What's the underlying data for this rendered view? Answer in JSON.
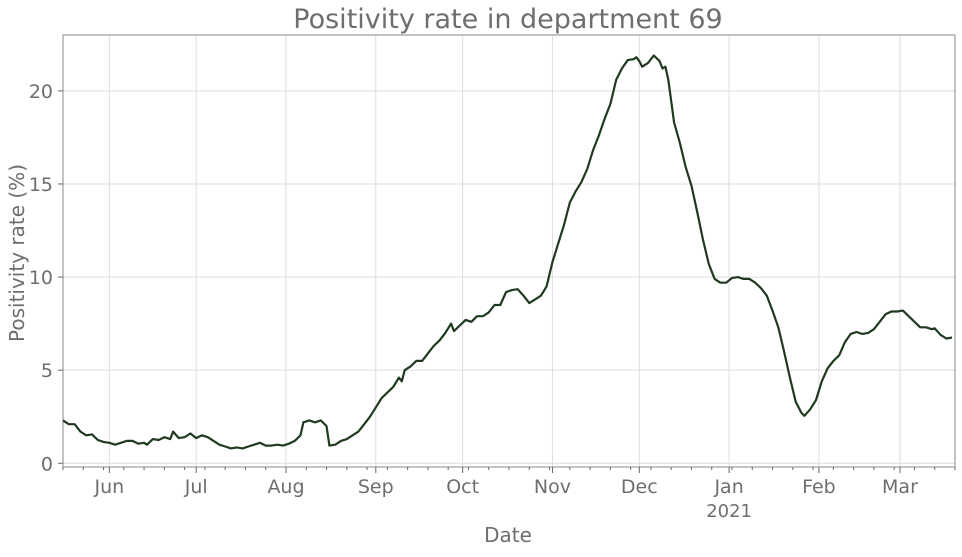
{
  "chart_data": {
    "type": "line",
    "title": "Positivity rate in department 69",
    "xlabel": "Date",
    "ylabel": "Positivity rate (%)",
    "ylim": [
      -0.2,
      23
    ],
    "xlim": [
      "2020-05-16",
      "2021-03-20"
    ],
    "grid": true,
    "y_ticks": [
      0,
      5,
      10,
      15,
      20
    ],
    "x_ticks": [
      {
        "label": "Jun",
        "date": "2020-06-01"
      },
      {
        "label": "Jul",
        "date": "2020-07-01"
      },
      {
        "label": "Aug",
        "date": "2020-08-01"
      },
      {
        "label": "Sep",
        "date": "2020-09-01"
      },
      {
        "label": "Oct",
        "date": "2020-10-01"
      },
      {
        "label": "Nov",
        "date": "2020-11-01"
      },
      {
        "label": "Dec",
        "date": "2020-12-01"
      },
      {
        "label": "Jan",
        "date": "2021-01-01",
        "sublabel": "2021"
      },
      {
        "label": "Feb",
        "date": "2021-02-01"
      },
      {
        "label": "Mar",
        "date": "2021-03-01"
      }
    ],
    "colors": {
      "line": "#1f3a1f",
      "grid": "#dddddd",
      "axis": "#666666",
      "text": "#6e6e6e"
    },
    "series": [
      {
        "values": [
          [
            "2020-05-16",
            2.3
          ],
          [
            "2020-05-18",
            2.1
          ],
          [
            "2020-05-20",
            2.1
          ],
          [
            "2020-05-22",
            1.7
          ],
          [
            "2020-05-24",
            1.5
          ],
          [
            "2020-05-26",
            1.55
          ],
          [
            "2020-05-28",
            1.25
          ],
          [
            "2020-05-30",
            1.15
          ],
          [
            "2020-06-01",
            1.1
          ],
          [
            "2020-06-03",
            1.0
          ],
          [
            "2020-06-05",
            1.1
          ],
          [
            "2020-06-07",
            1.2
          ],
          [
            "2020-06-09",
            1.2
          ],
          [
            "2020-06-11",
            1.05
          ],
          [
            "2020-06-13",
            1.1
          ],
          [
            "2020-06-14",
            1.0
          ],
          [
            "2020-06-16",
            1.3
          ],
          [
            "2020-06-18",
            1.25
          ],
          [
            "2020-06-20",
            1.4
          ],
          [
            "2020-06-22",
            1.3
          ],
          [
            "2020-06-23",
            1.7
          ],
          [
            "2020-06-25",
            1.35
          ],
          [
            "2020-06-27",
            1.4
          ],
          [
            "2020-06-29",
            1.6
          ],
          [
            "2020-07-01",
            1.35
          ],
          [
            "2020-07-03",
            1.5
          ],
          [
            "2020-07-05",
            1.4
          ],
          [
            "2020-07-07",
            1.2
          ],
          [
            "2020-07-09",
            1.0
          ],
          [
            "2020-07-11",
            0.9
          ],
          [
            "2020-07-13",
            0.8
          ],
          [
            "2020-07-15",
            0.85
          ],
          [
            "2020-07-17",
            0.8
          ],
          [
            "2020-07-19",
            0.9
          ],
          [
            "2020-07-21",
            1.0
          ],
          [
            "2020-07-23",
            1.1
          ],
          [
            "2020-07-25",
            0.95
          ],
          [
            "2020-07-27",
            0.95
          ],
          [
            "2020-07-29",
            1.0
          ],
          [
            "2020-07-31",
            0.95
          ],
          [
            "2020-08-02",
            1.05
          ],
          [
            "2020-08-04",
            1.2
          ],
          [
            "2020-08-06",
            1.5
          ],
          [
            "2020-08-07",
            2.2
          ],
          [
            "2020-08-09",
            2.3
          ],
          [
            "2020-08-11",
            2.2
          ],
          [
            "2020-08-13",
            2.3
          ],
          [
            "2020-08-15",
            2.0
          ],
          [
            "2020-08-16",
            0.95
          ],
          [
            "2020-08-18",
            1.0
          ],
          [
            "2020-08-20",
            1.2
          ],
          [
            "2020-08-22",
            1.3
          ],
          [
            "2020-08-24",
            1.5
          ],
          [
            "2020-08-26",
            1.7
          ],
          [
            "2020-08-28",
            2.1
          ],
          [
            "2020-08-30",
            2.5
          ],
          [
            "2020-09-01",
            3.0
          ],
          [
            "2020-09-03",
            3.5
          ],
          [
            "2020-09-05",
            3.8
          ],
          [
            "2020-09-07",
            4.1
          ],
          [
            "2020-09-09",
            4.6
          ],
          [
            "2020-09-10",
            4.4
          ],
          [
            "2020-09-11",
            5.0
          ],
          [
            "2020-09-13",
            5.2
          ],
          [
            "2020-09-15",
            5.5
          ],
          [
            "2020-09-17",
            5.5
          ],
          [
            "2020-09-19",
            5.9
          ],
          [
            "2020-09-21",
            6.3
          ],
          [
            "2020-09-23",
            6.6
          ],
          [
            "2020-09-25",
            7.0
          ],
          [
            "2020-09-27",
            7.5
          ],
          [
            "2020-09-28",
            7.1
          ],
          [
            "2020-09-30",
            7.4
          ],
          [
            "2020-10-02",
            7.7
          ],
          [
            "2020-10-04",
            7.6
          ],
          [
            "2020-10-06",
            7.9
          ],
          [
            "2020-10-08",
            7.9
          ],
          [
            "2020-10-10",
            8.1
          ],
          [
            "2020-10-12",
            8.5
          ],
          [
            "2020-10-14",
            8.5
          ],
          [
            "2020-10-16",
            9.2
          ],
          [
            "2020-10-18",
            9.3
          ],
          [
            "2020-10-20",
            9.35
          ],
          [
            "2020-10-22",
            9.0
          ],
          [
            "2020-10-24",
            8.6
          ],
          [
            "2020-10-26",
            8.8
          ],
          [
            "2020-10-28",
            9.0
          ],
          [
            "2020-10-30",
            9.5
          ],
          [
            "2020-11-01",
            10.8
          ],
          [
            "2020-11-03",
            11.8
          ],
          [
            "2020-11-05",
            12.8
          ],
          [
            "2020-11-07",
            14.0
          ],
          [
            "2020-11-09",
            14.6
          ],
          [
            "2020-11-11",
            15.1
          ],
          [
            "2020-11-13",
            15.8
          ],
          [
            "2020-11-15",
            16.8
          ],
          [
            "2020-11-17",
            17.6
          ],
          [
            "2020-11-19",
            18.5
          ],
          [
            "2020-11-21",
            19.3
          ],
          [
            "2020-11-23",
            20.6
          ],
          [
            "2020-11-25",
            21.2
          ],
          [
            "2020-11-27",
            21.65
          ],
          [
            "2020-11-29",
            21.7
          ],
          [
            "2020-11-30",
            21.8
          ],
          [
            "2020-12-01",
            21.6
          ],
          [
            "2020-12-02",
            21.3
          ],
          [
            "2020-12-04",
            21.5
          ],
          [
            "2020-12-06",
            21.9
          ],
          [
            "2020-12-08",
            21.6
          ],
          [
            "2020-12-09",
            21.2
          ],
          [
            "2020-12-10",
            21.3
          ],
          [
            "2020-12-11",
            20.6
          ],
          [
            "2020-12-13",
            18.3
          ],
          [
            "2020-12-15",
            17.2
          ],
          [
            "2020-12-17",
            15.9
          ],
          [
            "2020-12-19",
            14.9
          ],
          [
            "2020-12-21",
            13.5
          ],
          [
            "2020-12-23",
            12.0
          ],
          [
            "2020-12-25",
            10.7
          ],
          [
            "2020-12-27",
            9.9
          ],
          [
            "2020-12-29",
            9.7
          ],
          [
            "2020-12-31",
            9.7
          ]
        ]
      }
    ],
    "series_late_note": "",
    "series_continuation": [
      [
        "2021-01-02",
        9.95
      ],
      [
        "2021-01-04",
        10.0
      ],
      [
        "2021-01-06",
        9.9
      ],
      [
        "2021-01-08",
        9.9
      ],
      [
        "2021-01-10",
        9.7
      ],
      [
        "2021-01-12",
        9.4
      ],
      [
        "2021-01-14",
        9.0
      ],
      [
        "2021-01-16",
        8.2
      ],
      [
        "2021-01-18",
        7.3
      ],
      [
        "2021-01-20",
        6.0
      ],
      [
        "2021-01-22",
        4.6
      ],
      [
        "2021-01-24",
        3.3
      ],
      [
        "2021-01-26",
        2.7
      ],
      [
        "2021-01-27",
        2.55
      ],
      [
        "2021-01-29",
        2.9
      ],
      [
        "2021-01-31",
        3.4
      ],
      [
        "2021-02-02",
        4.4
      ],
      [
        "2021-02-04",
        5.1
      ],
      [
        "2021-02-06",
        5.5
      ],
      [
        "2021-02-08",
        5.8
      ],
      [
        "2021-02-10",
        6.5
      ],
      [
        "2021-02-12",
        6.95
      ],
      [
        "2021-02-14",
        7.05
      ],
      [
        "2021-02-16",
        6.95
      ],
      [
        "2021-02-18",
        7.0
      ],
      [
        "2021-02-20",
        7.2
      ],
      [
        "2021-02-22",
        7.6
      ],
      [
        "2021-02-24",
        8.0
      ],
      [
        "2021-02-26",
        8.15
      ],
      [
        "2021-02-28",
        8.15
      ],
      [
        "2021-03-02",
        8.2
      ],
      [
        "2021-03-04",
        7.9
      ],
      [
        "2021-03-06",
        7.6
      ],
      [
        "2021-03-08",
        7.3
      ],
      [
        "2021-03-10",
        7.3
      ],
      [
        "2021-03-12",
        7.2
      ],
      [
        "2021-03-13",
        7.25
      ],
      [
        "2021-03-15",
        6.9
      ],
      [
        "2021-03-17",
        6.7
      ],
      [
        "2021-03-19",
        6.75
      ]
    ]
  }
}
